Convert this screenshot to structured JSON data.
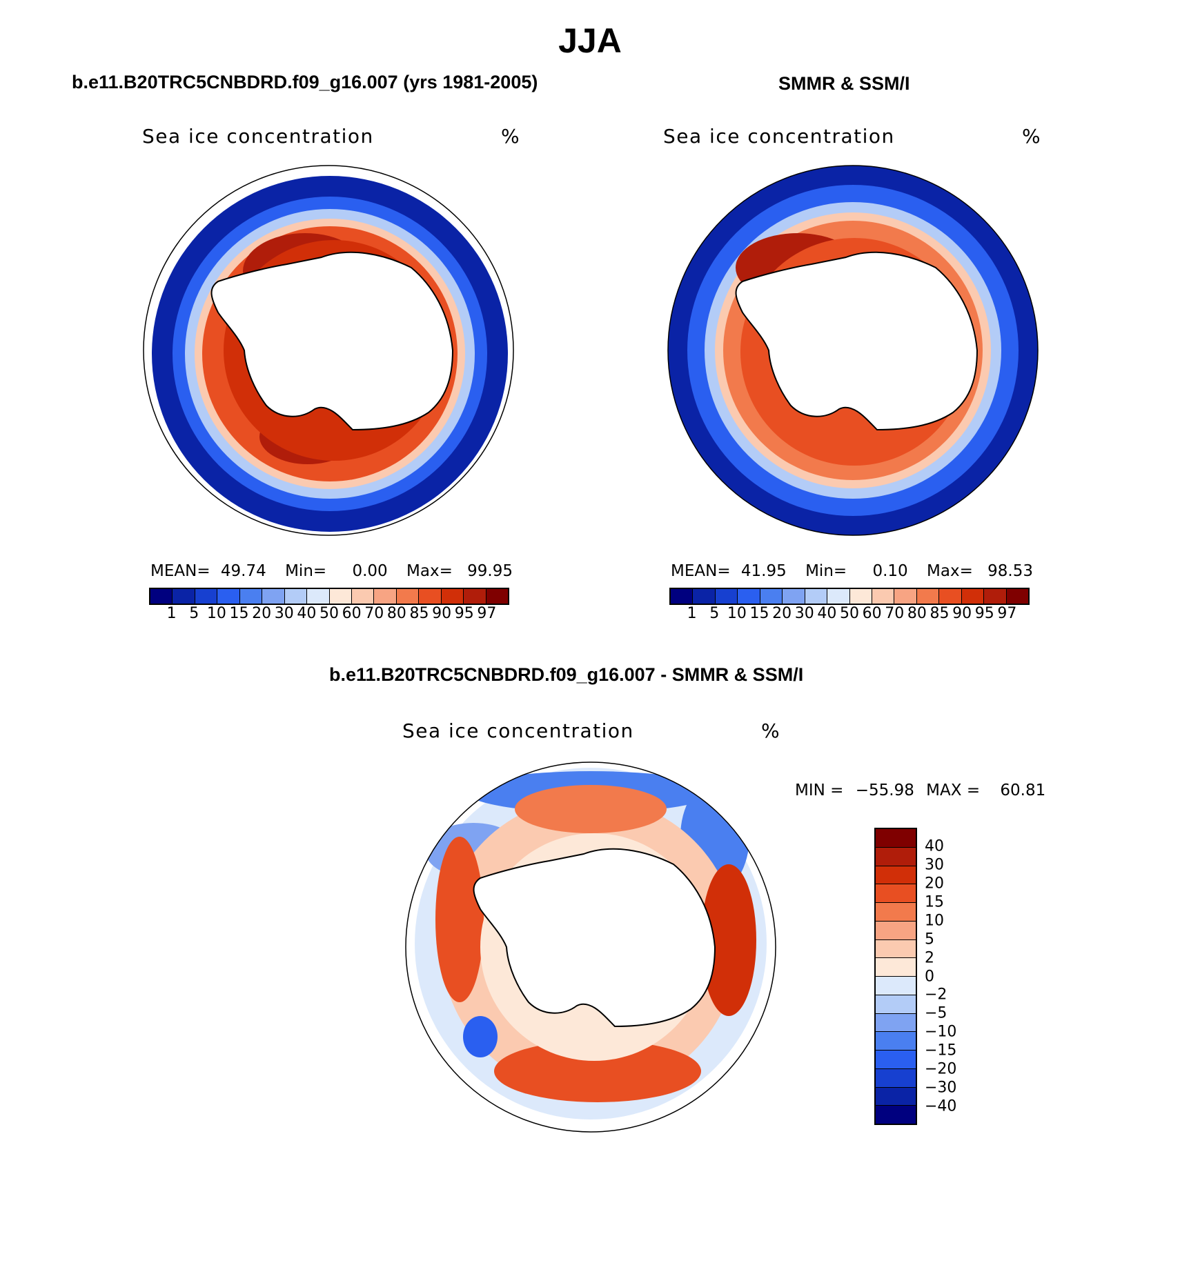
{
  "title": "JJA",
  "panels": [
    {
      "id": "model",
      "heading": "b.e11.B20TRC5CNBDRD.f09_g16.007 (yrs 1981-2005)",
      "variable": "Sea ice concentration",
      "units": "%",
      "stats": {
        "mean_label": "MEAN=",
        "mean": "49.74",
        "min_label": "Min=",
        "min": "0.00",
        "max_label": "Max=",
        "max": "99.95"
      }
    },
    {
      "id": "obs",
      "heading": "SMMR & SSM/I",
      "variable": "Sea ice concentration",
      "units": "%",
      "stats": {
        "mean_label": "MEAN=",
        "mean": "41.95",
        "min_label": "Min=",
        "min": "0.10",
        "max_label": "Max=",
        "max": "98.53"
      }
    },
    {
      "id": "diff",
      "heading": "b.e11.B20TRC5CNBDRD.f09_g16.007 - SMMR & SSM/I",
      "variable": "Sea ice concentration",
      "units": "%",
      "stats": {
        "min_label": "MIN =",
        "min": "−55.98",
        "max_label": "MAX =",
        "max": "60.81"
      }
    }
  ],
  "concentration_colorbar": {
    "labels": [
      "1",
      "5",
      "10",
      "15",
      "20",
      "30",
      "40",
      "50",
      "60",
      "70",
      "80",
      "85",
      "90",
      "95",
      "97"
    ],
    "colors": [
      "#00007f",
      "#0a23a6",
      "#1740d0",
      "#2a5ff0",
      "#4a7ff0",
      "#7fa3f2",
      "#b3ccf7",
      "#dce9fb",
      "#fde8d8",
      "#fbcab0",
      "#f7a483",
      "#f27a4c",
      "#e84f22",
      "#d12f08",
      "#b01d0a",
      "#7f0000"
    ]
  },
  "difference_colorbar": {
    "labels": [
      "40",
      "30",
      "20",
      "15",
      "10",
      "5",
      "2",
      "0",
      "−2",
      "−5",
      "−10",
      "−15",
      "−20",
      "−30",
      "−40"
    ],
    "colors": [
      "#7f0000",
      "#b01d0a",
      "#d12f08",
      "#e84f22",
      "#f27a4c",
      "#f7a483",
      "#fbcab0",
      "#fde8d8",
      "#dce9fb",
      "#b3ccf7",
      "#7fa3f2",
      "#4a7ff0",
      "#2a5ff0",
      "#1740d0",
      "#0a23a6",
      "#00007f"
    ]
  },
  "map_colors": {
    "ocean_edge": "#00007f",
    "ice_core": "#b01d0a",
    "ice_mid": "#e84f22",
    "ice_edge": "#fbcab0",
    "land": "#ffffff"
  }
}
